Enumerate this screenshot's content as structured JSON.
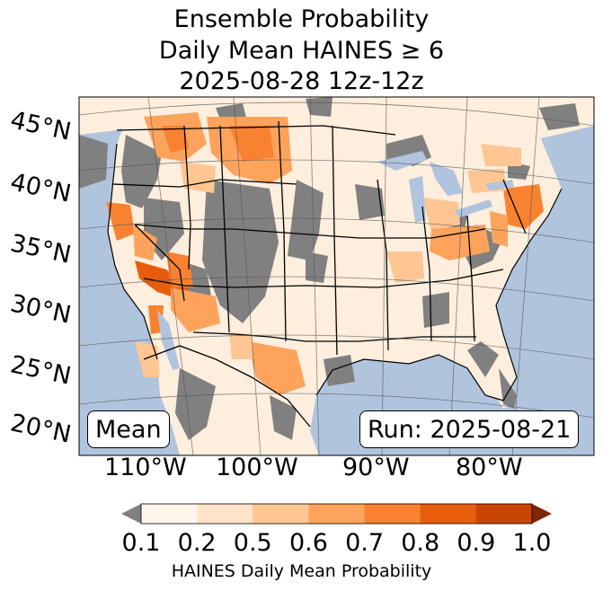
{
  "title": {
    "line1": "Ensemble Probability",
    "line2": "Daily Mean HAINES ≥ 6",
    "line3": "2025-08-28 12z-12z"
  },
  "map": {
    "lat_labels": [
      "45°N",
      "40°N",
      "35°N",
      "30°N",
      "25°N",
      "20°N"
    ],
    "lon_labels": [
      "110°W",
      "100°W",
      "90°W",
      "80°W"
    ],
    "mean_box": "Mean",
    "run_box": "Run: 2025-08-21",
    "colors": {
      "ocean": "#b0c4de",
      "missing": "#808080",
      "land_low": "#fdeedd"
    }
  },
  "colorbar": {
    "ticks": [
      "0.1",
      "0.2",
      "0.5",
      "0.6",
      "0.7",
      "0.8",
      "0.9",
      "1.0"
    ],
    "colors": [
      "#fff5eb",
      "#fde3c8",
      "#fdc692",
      "#fda35c",
      "#f98230",
      "#e85d0c",
      "#c84401"
    ],
    "under_color": "#808080",
    "over_color": "#7f2704",
    "label": "HAINES Daily Mean Probability"
  }
}
